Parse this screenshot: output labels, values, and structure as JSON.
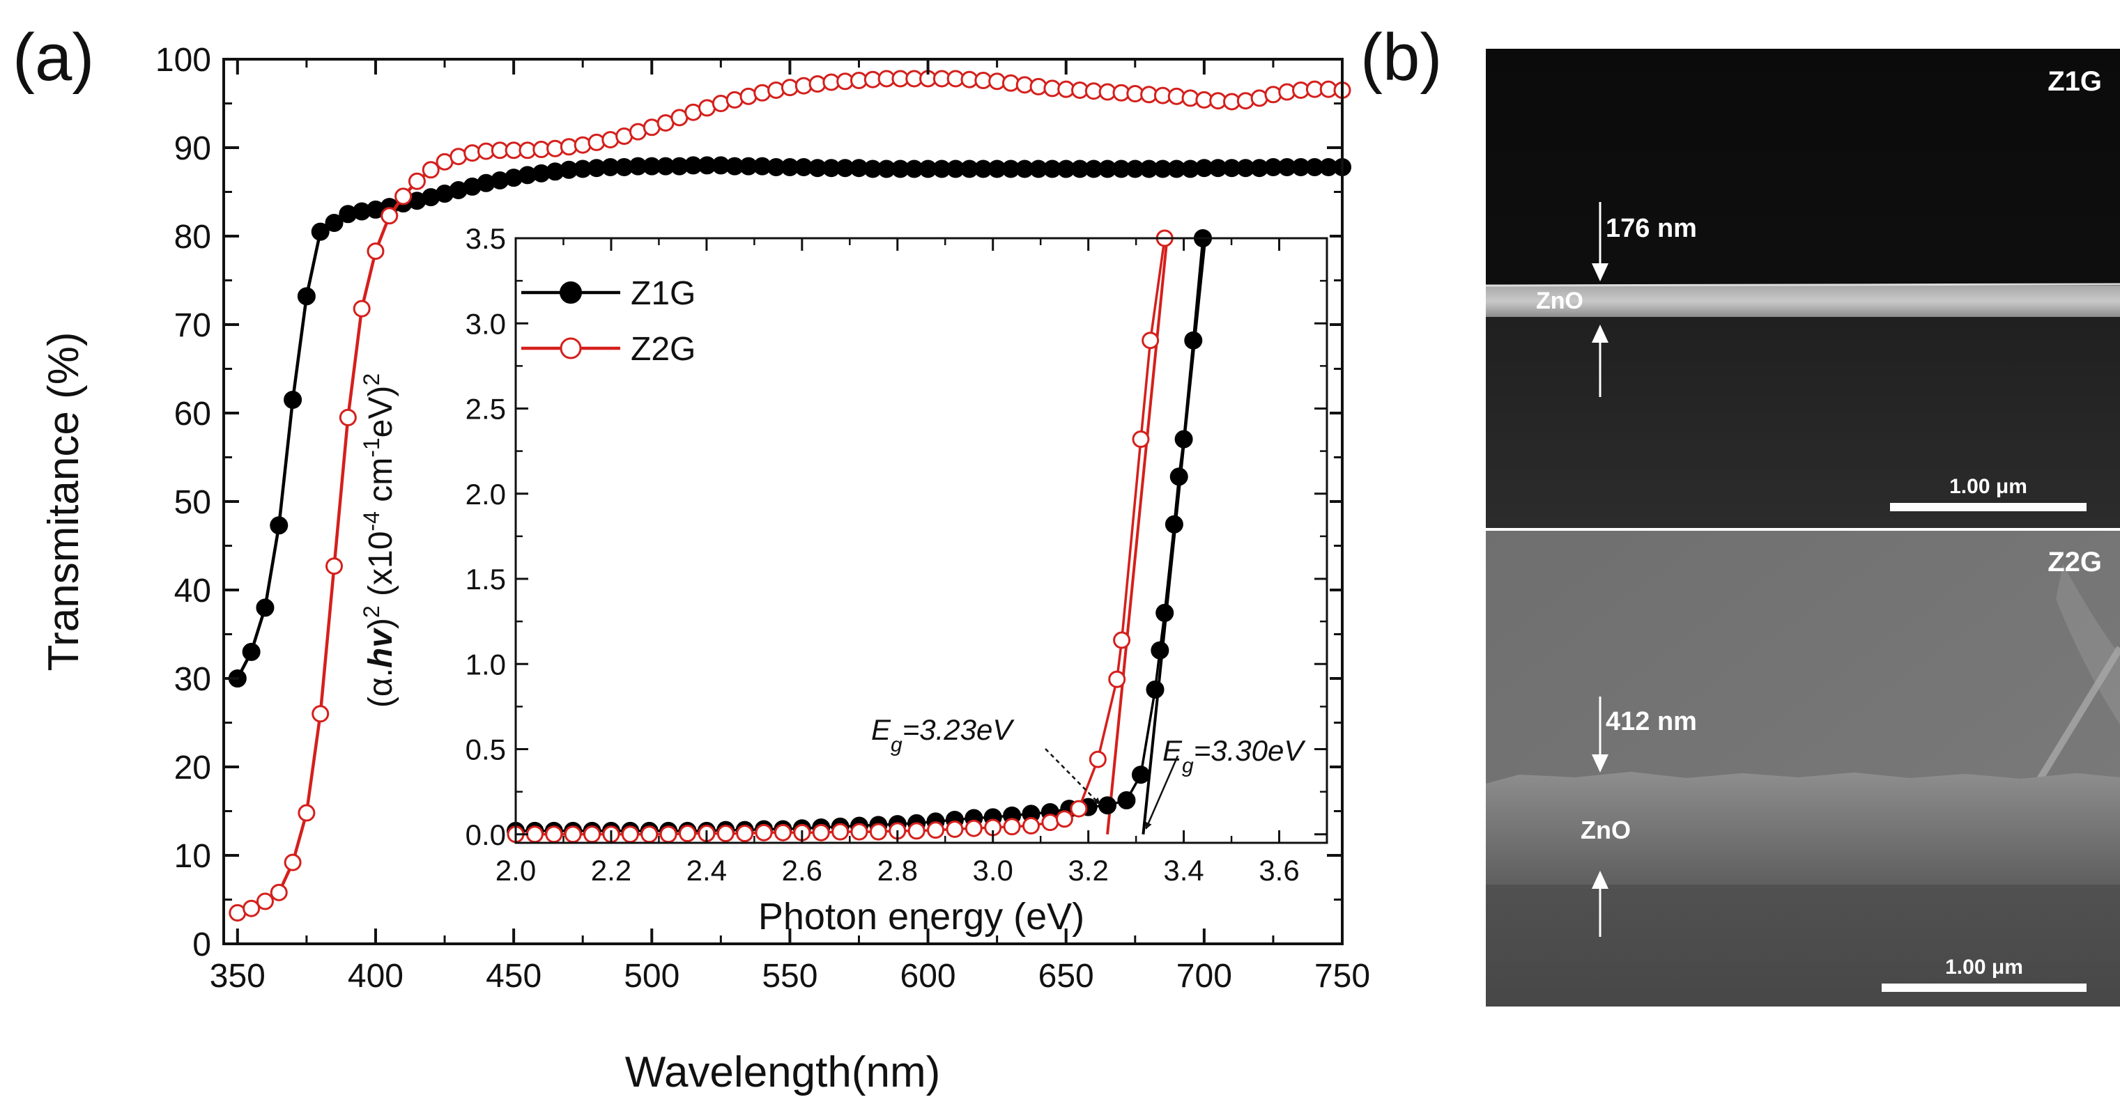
{
  "panel_a_label": "(a)",
  "panel_b_label": "(b)",
  "chart_data": [
    {
      "type": "line",
      "name": "transmittance",
      "title": "",
      "xlabel": "Wavelength(nm)",
      "ylabel": "Transmitance (%)",
      "xlim": [
        345,
        750
      ],
      "ylim": [
        0,
        100
      ],
      "xticks": [
        350,
        400,
        450,
        500,
        550,
        600,
        650,
        700,
        750
      ],
      "yticks": [
        0,
        10,
        20,
        30,
        40,
        50,
        60,
        70,
        80,
        90,
        100
      ],
      "series": [
        {
          "name": "Z1G",
          "color": "#000000",
          "marker": "filled-circle",
          "x": [
            350,
            355,
            360,
            365,
            370,
            375,
            380,
            385,
            390,
            395,
            400,
            405,
            410,
            415,
            420,
            425,
            430,
            435,
            440,
            445,
            450,
            455,
            460,
            465,
            470,
            475,
            480,
            485,
            490,
            495,
            500,
            505,
            510,
            515,
            520,
            525,
            530,
            535,
            540,
            545,
            550,
            555,
            560,
            565,
            570,
            575,
            580,
            585,
            590,
            595,
            600,
            605,
            610,
            615,
            620,
            625,
            630,
            635,
            640,
            645,
            650,
            655,
            660,
            665,
            670,
            675,
            680,
            685,
            690,
            695,
            700,
            705,
            710,
            715,
            720,
            725,
            730,
            735,
            740,
            745,
            750
          ],
          "y": [
            30,
            33,
            38,
            47.3,
            61.5,
            73.2,
            80.5,
            81.5,
            82.5,
            82.8,
            83,
            83.3,
            83.7,
            84,
            84.4,
            84.8,
            85.2,
            85.6,
            86,
            86.3,
            86.6,
            86.9,
            87.1,
            87.3,
            87.5,
            87.6,
            87.7,
            87.8,
            87.8,
            87.9,
            87.9,
            87.9,
            87.9,
            88,
            88,
            88,
            87.9,
            87.9,
            87.9,
            87.8,
            87.8,
            87.8,
            87.7,
            87.7,
            87.7,
            87.7,
            87.6,
            87.6,
            87.6,
            87.6,
            87.6,
            87.6,
            87.6,
            87.6,
            87.6,
            87.6,
            87.6,
            87.6,
            87.6,
            87.6,
            87.6,
            87.6,
            87.6,
            87.6,
            87.6,
            87.6,
            87.6,
            87.6,
            87.6,
            87.6,
            87.7,
            87.7,
            87.7,
            87.7,
            87.7,
            87.8,
            87.8,
            87.8,
            87.8,
            87.8,
            87.8
          ]
        },
        {
          "name": "Z2G",
          "color": "#d4201c",
          "marker": "open-circle",
          "x": [
            350,
            355,
            360,
            365,
            370,
            375,
            380,
            385,
            390,
            395,
            400,
            405,
            410,
            415,
            420,
            425,
            430,
            435,
            440,
            445,
            450,
            455,
            460,
            465,
            470,
            475,
            480,
            485,
            490,
            495,
            500,
            505,
            510,
            515,
            520,
            525,
            530,
            535,
            540,
            545,
            550,
            555,
            560,
            565,
            570,
            575,
            580,
            585,
            590,
            595,
            600,
            605,
            610,
            615,
            620,
            625,
            630,
            635,
            640,
            645,
            650,
            655,
            660,
            665,
            670,
            675,
            680,
            685,
            690,
            695,
            700,
            705,
            710,
            715,
            720,
            725,
            730,
            735,
            740,
            745,
            750
          ],
          "y": [
            3.5,
            4,
            4.8,
            5.8,
            9.2,
            14.8,
            26,
            42.7,
            59.5,
            71.8,
            78.3,
            82.3,
            84.5,
            86.2,
            87.5,
            88.4,
            89,
            89.4,
            89.6,
            89.7,
            89.7,
            89.7,
            89.8,
            89.9,
            90.1,
            90.3,
            90.6,
            90.9,
            91.3,
            91.8,
            92.3,
            92.8,
            93.4,
            94,
            94.5,
            95,
            95.4,
            95.8,
            96.2,
            96.5,
            96.8,
            97,
            97.2,
            97.4,
            97.5,
            97.6,
            97.7,
            97.8,
            97.8,
            97.8,
            97.8,
            97.8,
            97.8,
            97.7,
            97.6,
            97.5,
            97.3,
            97.1,
            96.9,
            96.7,
            96.6,
            96.5,
            96.4,
            96.3,
            96.2,
            96.1,
            96,
            95.9,
            95.8,
            95.6,
            95.4,
            95.3,
            95.2,
            95.3,
            95.6,
            96,
            96.3,
            96.5,
            96.6,
            96.6,
            96.5
          ]
        }
      ]
    },
    {
      "type": "line",
      "name": "tauc-inset",
      "title": "",
      "xlabel": "Photon energy (eV)",
      "ylabel_parts": [
        "(α.",
        "hv",
        ")",
        "2",
        " (x10",
        "-4",
        " cm",
        "-1",
        "eV)",
        "2"
      ],
      "xlim": [
        2.0,
        3.7
      ],
      "ylim": [
        -0.05,
        3.5
      ],
      "xticks": [
        2.0,
        2.2,
        2.4,
        2.6,
        2.8,
        3.0,
        3.2,
        3.4,
        3.6
      ],
      "yticks": [
        0.0,
        0.5,
        1.0,
        1.5,
        2.0,
        2.5,
        3.0,
        3.5
      ],
      "legend": {
        "position": "top-left",
        "entries": [
          "Z1G",
          "Z2G"
        ]
      },
      "series": [
        {
          "name": "Z1G",
          "color": "#000000",
          "marker": "filled-circle",
          "x": [
            2.0,
            2.04,
            2.08,
            2.12,
            2.16,
            2.2,
            2.24,
            2.28,
            2.32,
            2.36,
            2.4,
            2.44,
            2.48,
            2.52,
            2.56,
            2.6,
            2.64,
            2.68,
            2.72,
            2.76,
            2.8,
            2.84,
            2.88,
            2.92,
            2.96,
            3.0,
            3.04,
            3.08,
            3.12,
            3.16,
            3.2,
            3.24,
            3.28,
            3.31,
            3.34,
            3.35,
            3.36,
            3.38,
            3.39,
            3.4,
            3.42,
            3.44
          ],
          "y": [
            0.02,
            0.02,
            0.02,
            0.02,
            0.02,
            0.02,
            0.02,
            0.02,
            0.02,
            0.02,
            0.02,
            0.025,
            0.025,
            0.03,
            0.03,
            0.035,
            0.04,
            0.045,
            0.05,
            0.055,
            0.06,
            0.065,
            0.075,
            0.085,
            0.095,
            0.1,
            0.11,
            0.12,
            0.13,
            0.15,
            0.16,
            0.17,
            0.2,
            0.35,
            0.85,
            1.08,
            1.3,
            1.82,
            2.1,
            2.32,
            2.9,
            3.5
          ]
        },
        {
          "name": "Z2G",
          "color": "#d4201c",
          "marker": "open-circle",
          "x": [
            2.0,
            2.04,
            2.08,
            2.12,
            2.16,
            2.2,
            2.24,
            2.28,
            2.32,
            2.36,
            2.4,
            2.44,
            2.48,
            2.52,
            2.56,
            2.6,
            2.64,
            2.68,
            2.72,
            2.76,
            2.8,
            2.84,
            2.88,
            2.92,
            2.96,
            3.0,
            3.04,
            3.08,
            3.12,
            3.15,
            3.18,
            3.22,
            3.26,
            3.27,
            3.31,
            3.33,
            3.36
          ],
          "y": [
            0.0,
            0.0,
            0.0,
            0.0,
            0.0,
            0.0,
            0.0,
            0.0,
            0.0,
            0.005,
            0.005,
            0.005,
            0.005,
            0.01,
            0.01,
            0.01,
            0.01,
            0.015,
            0.015,
            0.015,
            0.02,
            0.02,
            0.025,
            0.03,
            0.035,
            0.04,
            0.045,
            0.05,
            0.07,
            0.09,
            0.15,
            0.44,
            0.91,
            1.14,
            2.32,
            2.9,
            3.5
          ]
        }
      ],
      "fit_lines": [
        {
          "series": "Z2G",
          "x": [
            3.24,
            3.365
          ],
          "y": [
            0.0,
            3.5
          ]
        },
        {
          "series": "Z1G",
          "x": [
            3.315,
            3.445
          ],
          "y": [
            0.0,
            3.5
          ]
        }
      ],
      "annotations": [
        {
          "symbol": "E",
          "sub": "g",
          "text": "=3.23eV",
          "at_x": 3.23,
          "at_y": 0.16
        },
        {
          "symbol": "E",
          "sub": "g",
          "text": "=3.30eV",
          "at_x": 3.315,
          "at_y": 0.0
        }
      ]
    }
  ],
  "sem_panels": [
    {
      "label": "Z1G",
      "thickness": "176 nm",
      "material": "ZnO",
      "scale": "1.00 μm"
    },
    {
      "label": "Z2G",
      "thickness": "412 nm",
      "material": "ZnO",
      "scale": "1.00 μm"
    }
  ],
  "colors": {
    "z1g": "#000000",
    "z2g": "#d4201c"
  }
}
